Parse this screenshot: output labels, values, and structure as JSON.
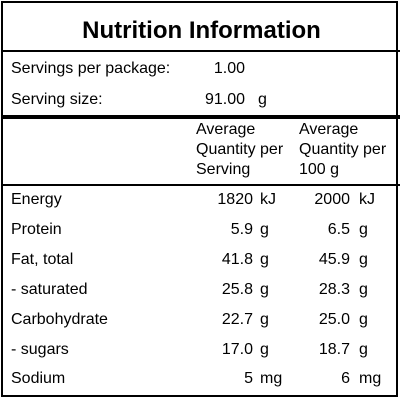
{
  "panel": {
    "title": "Nutrition Information",
    "servings_per_package_label": "Servings per package:",
    "servings_per_package_value": "1.00",
    "serving_size_label": "Serving size:",
    "serving_size_value": "91.00",
    "serving_size_unit": "g",
    "col_serving_header": [
      "Average",
      "Quantity per",
      "Serving"
    ],
    "col_100g_header": [
      "Average",
      "Quantity per",
      "100 g"
    ],
    "rows": [
      {
        "name": "Energy",
        "per_serving": "1820",
        "unit_serving": "kJ",
        "per_100g": "2000",
        "unit_100g": "kJ"
      },
      {
        "name": "Protein",
        "per_serving": "5.9",
        "unit_serving": "g",
        "per_100g": "6.5",
        "unit_100g": "g"
      },
      {
        "name": "Fat, total",
        "per_serving": "41.8",
        "unit_serving": "g",
        "per_100g": "45.9",
        "unit_100g": "g"
      },
      {
        "name": "- saturated",
        "per_serving": "25.8",
        "unit_serving": "g",
        "per_100g": "28.3",
        "unit_100g": "g"
      },
      {
        "name": "Carbohydrate",
        "per_serving": "22.7",
        "unit_serving": "g",
        "per_100g": "25.0",
        "unit_100g": "g"
      },
      {
        "name": "- sugars",
        "per_serving": "17.0",
        "unit_serving": "g",
        "per_100g": "18.7",
        "unit_100g": "g"
      },
      {
        "name": "Sodium",
        "per_serving": "5",
        "unit_serving": "mg",
        "per_100g": "6",
        "unit_100g": "mg"
      }
    ]
  }
}
